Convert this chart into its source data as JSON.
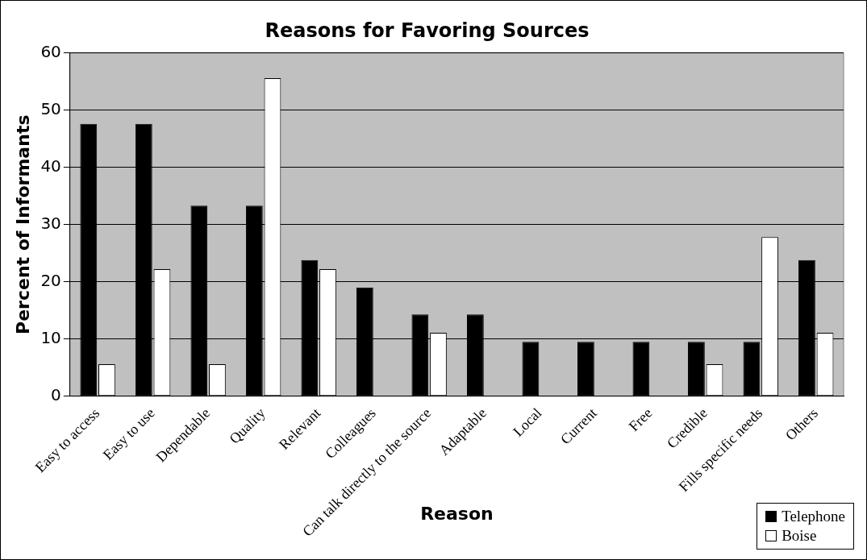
{
  "chart_data": {
    "type": "bar",
    "title": "Reasons for Favoring Sources",
    "xlabel": "Reason",
    "ylabel": "Percent of Informants",
    "categories": [
      "Easy to access",
      "Easy to use",
      "Dependable",
      "Quality",
      "Relevant",
      "Colleagues",
      "Can talk directly to the source",
      "Adaptable",
      "Local",
      "Current",
      "Free",
      "Credible",
      "Fills specific needs",
      "Others"
    ],
    "series": [
      {
        "name": "Telephone",
        "color": "#000000",
        "values": [
          47.6,
          47.6,
          33.3,
          33.3,
          23.8,
          19.0,
          14.3,
          14.3,
          9.5,
          9.5,
          9.5,
          9.5,
          9.5,
          23.8
        ]
      },
      {
        "name": "Boise",
        "color": "#ffffff",
        "values": [
          5.6,
          22.2,
          5.6,
          55.6,
          22.2,
          0,
          11.1,
          0,
          0,
          0,
          0,
          5.6,
          27.8,
          11.1
        ]
      }
    ],
    "ylim": [
      0,
      60
    ],
    "yticks": [
      0,
      10,
      20,
      30,
      40,
      50,
      60
    ],
    "grid": "y",
    "legend": "bottom right"
  }
}
